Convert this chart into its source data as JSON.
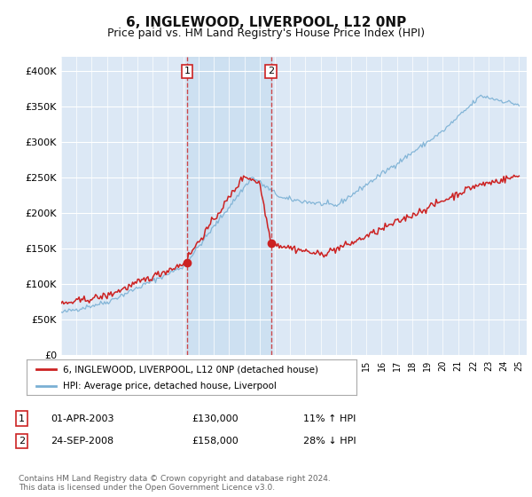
{
  "title": "6, INGLEWOOD, LIVERPOOL, L12 0NP",
  "subtitle": "Price paid vs. HM Land Registry's House Price Index (HPI)",
  "ylim": [
    0,
    420000
  ],
  "yticks": [
    0,
    50000,
    100000,
    150000,
    200000,
    250000,
    300000,
    350000,
    400000
  ],
  "ytick_labels": [
    "£0",
    "£50K",
    "£100K",
    "£150K",
    "£200K",
    "£250K",
    "£300K",
    "£350K",
    "£400K"
  ],
  "background_color": "#ffffff",
  "plot_bg_color": "#dce8f5",
  "grid_color": "#ffffff",
  "hpi_color": "#7ab0d4",
  "price_color": "#cc2222",
  "shade_color": "#c8ddf0",
  "yr1": 2003.25,
  "yr2": 2008.75,
  "marker1_price": 130000,
  "marker2_price": 158000,
  "legend_label1": "6, INGLEWOOD, LIVERPOOL, L12 0NP (detached house)",
  "legend_label2": "HPI: Average price, detached house, Liverpool",
  "table_row1": [
    "1",
    "01-APR-2003",
    "£130,000",
    "11% ↑ HPI"
  ],
  "table_row2": [
    "2",
    "24-SEP-2008",
    "£158,000",
    "28% ↓ HPI"
  ],
  "footnote": "Contains HM Land Registry data © Crown copyright and database right 2024.\nThis data is licensed under the Open Government Licence v3.0.",
  "title_fontsize": 11,
  "subtitle_fontsize": 9
}
